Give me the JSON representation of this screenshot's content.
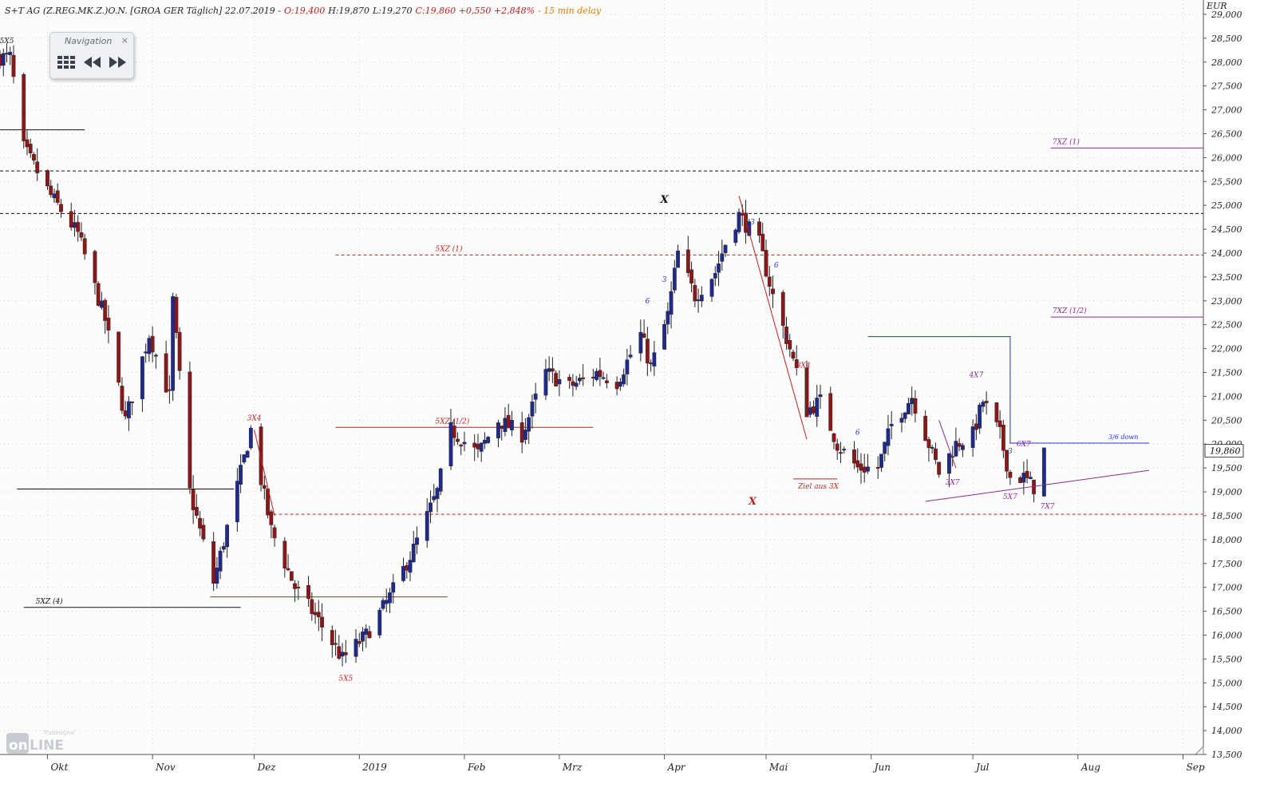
{
  "header": {
    "title": "S+T AG (Z.REG.MK.Z.)O.N. [GROA GER Täglich] 22.07.2019 -",
    "open": "O:19,400",
    "high": "H:19,870",
    "low": "L:19,270",
    "close": "C:19,860 +0,550 +2,848%",
    "delay": "- 15 min delay"
  },
  "navigation": {
    "title": "Navigation",
    "close": "×"
  },
  "watermark": {
    "brand": "Tradesignal",
    "product": "online"
  },
  "colors": {
    "up": "#1f2a8a",
    "down": "#8b1818",
    "blue_line": "#2233cc",
    "red_line": "#c01f1f",
    "purple_line": "#8a2c8c",
    "black_line": "#111111"
  },
  "chart_data": {
    "type": "candlestick",
    "currency_label": "EUR",
    "last_price_label": "19,860",
    "ylim": [
      13.5,
      29.3
    ],
    "y_ticks": [
      13.5,
      14,
      14.5,
      15,
      15.5,
      16,
      16.5,
      17,
      17.5,
      18,
      18.5,
      19,
      19.5,
      20,
      20.5,
      21,
      21.5,
      22,
      22.5,
      23,
      23.5,
      24,
      24.5,
      25,
      25.5,
      26,
      26.5,
      27,
      27.5,
      28,
      28.5,
      29
    ],
    "y_tick_labels": [
      "13,500",
      "14,000",
      "14,500",
      "15,000",
      "15,500",
      "16,000",
      "16,500",
      "17,000",
      "17,500",
      "18,000",
      "18,500",
      "19,000",
      "19,500",
      "20,000",
      "20,500",
      "21,000",
      "21,500",
      "22,000",
      "22,500",
      "23,000",
      "23,500",
      "24,000",
      "24,500",
      "25,000",
      "25,500",
      "26,000",
      "26,500",
      "27,000",
      "27,500",
      "28,000",
      "28,500",
      "29,000"
    ],
    "x_range": [
      "2018-09-17",
      "2019-09-07"
    ],
    "x_ticks": [
      {
        "date": "2018-10-01",
        "label": "Okt"
      },
      {
        "date": "2018-11-01",
        "label": "Nov"
      },
      {
        "date": "2018-12-01",
        "label": "Dez"
      },
      {
        "date": "2019-01-01",
        "label": "2019"
      },
      {
        "date": "2019-02-01",
        "label": "Feb"
      },
      {
        "date": "2019-03-01",
        "label": "Mrz"
      },
      {
        "date": "2019-04-01",
        "label": "Apr"
      },
      {
        "date": "2019-05-01",
        "label": "Mai"
      },
      {
        "date": "2019-06-01",
        "label": "Jun"
      },
      {
        "date": "2019-07-01",
        "label": "Jul"
      },
      {
        "date": "2019-08-01",
        "label": "Aug"
      },
      {
        "date": "2019-09-01",
        "label": "Sep"
      }
    ],
    "key_prices": [
      {
        "date": "2018-09-20",
        "price": 28.1
      },
      {
        "date": "2018-09-24",
        "price": 26.2
      },
      {
        "date": "2018-10-02",
        "price": 25.2
      },
      {
        "date": "2018-10-10",
        "price": 24.4
      },
      {
        "date": "2018-10-18",
        "price": 22.6
      },
      {
        "date": "2018-10-24",
        "price": 20.5
      },
      {
        "date": "2018-10-31",
        "price": 22.3
      },
      {
        "date": "2018-11-06",
        "price": 21.0
      },
      {
        "date": "2018-11-07",
        "price": 23.0
      },
      {
        "date": "2018-11-12",
        "price": 19.0
      },
      {
        "date": "2018-11-19",
        "price": 17.1
      },
      {
        "date": "2018-11-27",
        "price": 19.4
      },
      {
        "date": "2018-11-30",
        "price": 20.3
      },
      {
        "date": "2018-12-06",
        "price": 18.2
      },
      {
        "date": "2018-12-13",
        "price": 17.0
      },
      {
        "date": "2018-12-20",
        "price": 16.3
      },
      {
        "date": "2018-12-27",
        "price": 15.5
      },
      {
        "date": "2019-01-03",
        "price": 16.0
      },
      {
        "date": "2019-01-10",
        "price": 16.8
      },
      {
        "date": "2019-01-17",
        "price": 17.8
      },
      {
        "date": "2019-01-24",
        "price": 19.0
      },
      {
        "date": "2019-01-28",
        "price": 20.3
      },
      {
        "date": "2019-02-05",
        "price": 19.8
      },
      {
        "date": "2019-02-11",
        "price": 20.5
      },
      {
        "date": "2019-02-18",
        "price": 20.2
      },
      {
        "date": "2019-02-25",
        "price": 21.5
      },
      {
        "date": "2019-03-04",
        "price": 21.2
      },
      {
        "date": "2019-03-12",
        "price": 21.5
      },
      {
        "date": "2019-03-18",
        "price": 21.3
      },
      {
        "date": "2019-03-25",
        "price": 22.3
      },
      {
        "date": "2019-03-28",
        "price": 21.6
      },
      {
        "date": "2019-04-02",
        "price": 22.7
      },
      {
        "date": "2019-04-05",
        "price": 24.0
      },
      {
        "date": "2019-04-10",
        "price": 23.1
      },
      {
        "date": "2019-04-16",
        "price": 23.6
      },
      {
        "date": "2019-04-19",
        "price": 24.2
      },
      {
        "date": "2019-04-23",
        "price": 24.8
      },
      {
        "date": "2019-04-29",
        "price": 24.2
      },
      {
        "date": "2019-05-03",
        "price": 23.1
      },
      {
        "date": "2019-05-08",
        "price": 22.0
      },
      {
        "date": "2019-05-13",
        "price": 20.7
      },
      {
        "date": "2019-05-17",
        "price": 20.9
      },
      {
        "date": "2019-05-22",
        "price": 20.0
      },
      {
        "date": "2019-05-28",
        "price": 19.5
      },
      {
        "date": "2019-06-03",
        "price": 19.5
      },
      {
        "date": "2019-06-07",
        "price": 20.4
      },
      {
        "date": "2019-06-13",
        "price": 21.0
      },
      {
        "date": "2019-06-17",
        "price": 20.2
      },
      {
        "date": "2019-06-21",
        "price": 19.4
      },
      {
        "date": "2019-06-26",
        "price": 20.0
      },
      {
        "date": "2019-07-01",
        "price": 20.2
      },
      {
        "date": "2019-07-04",
        "price": 20.9
      },
      {
        "date": "2019-07-09",
        "price": 20.2
      },
      {
        "date": "2019-07-12",
        "price": 19.3
      },
      {
        "date": "2019-07-16",
        "price": 19.3
      },
      {
        "date": "2019-07-19",
        "price": 19.1
      },
      {
        "date": "2019-07-22",
        "price": 19.86
      }
    ],
    "levels": [
      {
        "price": 25.72,
        "from": "2018-09-17",
        "to": "2019-09-07",
        "style": "dashed",
        "color": "#111111",
        "label": ""
      },
      {
        "price": 24.83,
        "from": "2018-09-17",
        "to": "2019-09-07",
        "style": "dashed",
        "color": "#111111",
        "label": ""
      },
      {
        "price": 26.58,
        "from": "2018-09-17",
        "to": "2018-10-12",
        "style": "solid",
        "color": "#111111",
        "label": ""
      },
      {
        "price": 19.06,
        "from": "2018-09-22",
        "to": "2018-11-25",
        "style": "solid",
        "color": "#111111",
        "label": ""
      },
      {
        "price": 16.58,
        "from": "2018-09-24",
        "to": "2018-11-27",
        "style": "solid",
        "color": "#111111",
        "label": "5XZ (4)"
      },
      {
        "price": 16.8,
        "from": "2018-11-18",
        "to": "2019-01-27",
        "style": "solid",
        "color": "#c01f1f",
        "label": ""
      },
      {
        "price": 23.96,
        "from": "2018-12-25",
        "to": "2019-09-07",
        "style": "dashed",
        "color": "#c01f1f",
        "label": "5XZ (1)"
      },
      {
        "price": 20.35,
        "from": "2018-12-25",
        "to": "2019-03-11",
        "style": "solid",
        "color": "#c01f1f",
        "label": "5XZ (1/2)"
      },
      {
        "price": 18.53,
        "from": "2018-12-05",
        "to": "2019-09-07",
        "style": "dashed",
        "color": "#c01f1f",
        "label": ""
      },
      {
        "price": 26.2,
        "from": "2019-07-24",
        "to": "2019-09-07",
        "style": "solid",
        "color": "#8a2c8c",
        "label": "7XZ (1)"
      },
      {
        "price": 22.66,
        "from": "2019-07-24",
        "to": "2019-09-07",
        "style": "solid",
        "color": "#8a2c8c",
        "label": "7XZ (1/2)"
      },
      {
        "price": 19.27,
        "from": "2019-05-09",
        "to": "2019-05-22",
        "style": "solid",
        "color": "#c01f1f",
        "label": "Ziel aus 3X"
      }
    ],
    "blue_line": [
      [
        "2019-05-31",
        22.25
      ],
      [
        "2019-07-12",
        22.25
      ],
      [
        "2019-07-12",
        20.02
      ],
      [
        "2019-08-22",
        20.02
      ]
    ],
    "blue_line_label": "3/6 down",
    "trendlines": [
      {
        "from": [
          "2018-12-01",
          20.3
        ],
        "to": [
          "2018-12-07",
          18.5
        ],
        "color": "#c01f1f"
      },
      {
        "from": [
          "2019-04-23",
          25.2
        ],
        "to": [
          "2019-05-13",
          20.1
        ],
        "color": "#c01f1f"
      },
      {
        "from": [
          "2019-06-17",
          18.8
        ],
        "to": [
          "2019-08-22",
          19.45
        ],
        "color": "#8a2c8c"
      },
      {
        "from": [
          "2019-06-21",
          20.5
        ],
        "to": [
          "2019-06-26",
          19.5
        ],
        "color": "#8a2c8c"
      }
    ],
    "annotations": [
      {
        "text": "5X5",
        "date": "2018-09-19",
        "price": 28.4,
        "color": "#222222"
      },
      {
        "text": "3X4",
        "date": "2018-12-01",
        "price": 20.5,
        "color": "#c01f1f"
      },
      {
        "text": "5X5",
        "date": "2018-12-28",
        "price": 15.05,
        "color": "#c01f1f"
      },
      {
        "text": "X",
        "date": "2019-04-01",
        "price": 25.05,
        "color": "#111111"
      },
      {
        "text": "X",
        "date": "2019-04-27",
        "price": 18.73,
        "color": "#c01f1f"
      },
      {
        "text": "3X4",
        "date": "2019-05-12",
        "price": 21.6,
        "color": "#c01f1f"
      },
      {
        "text": "4X7",
        "date": "2019-07-02",
        "price": 21.4,
        "color": "#8a2c8c"
      },
      {
        "text": "3X7",
        "date": "2019-06-25",
        "price": 19.15,
        "color": "#8a2c8c"
      },
      {
        "text": "6X7",
        "date": "2019-07-16",
        "price": 19.95,
        "color": "#8a2c8c"
      },
      {
        "text": "5X7",
        "date": "2019-07-12",
        "price": 18.85,
        "color": "#8a2c8c"
      },
      {
        "text": "7X7",
        "date": "2019-07-23",
        "price": 18.65,
        "color": "#8a2c8c"
      },
      {
        "text": "3",
        "date": "2019-04-27",
        "price": 24.6,
        "color": "#2233cc"
      },
      {
        "text": "3",
        "date": "2019-04-01",
        "price": 23.4,
        "color": "#2233cc"
      },
      {
        "text": "6",
        "date": "2019-03-27",
        "price": 22.95,
        "color": "#2233cc"
      },
      {
        "text": "6",
        "date": "2019-05-04",
        "price": 23.7,
        "color": "#2233cc"
      },
      {
        "text": "3",
        "date": "2019-05-07",
        "price": 22.2,
        "color": "#2233cc"
      },
      {
        "text": "6",
        "date": "2019-05-28",
        "price": 20.2,
        "color": "#2233cc"
      },
      {
        "text": "3",
        "date": "2019-07-12",
        "price": 19.8,
        "color": "#2233cc"
      }
    ]
  }
}
